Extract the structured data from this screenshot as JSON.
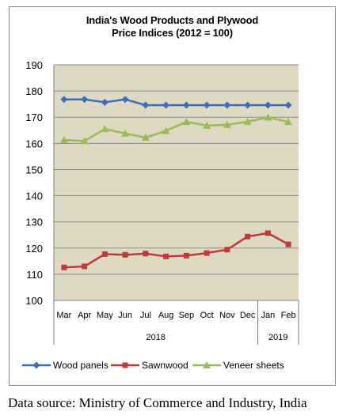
{
  "chart_data": {
    "type": "line",
    "title": [
      "India's Wood Products and Plywood",
      "Price Indices (2012 = 100)"
    ],
    "categories": [
      "Mar",
      "Apr",
      "May",
      "Jun",
      "Jul",
      "Aug",
      "Sep",
      "Oct",
      "Nov",
      "Dec",
      "Jan",
      "Feb"
    ],
    "year_groups": [
      {
        "label": "2018",
        "from": 0,
        "to": 9
      },
      {
        "label": "2019",
        "from": 10,
        "to": 11
      }
    ],
    "ylim": [
      100,
      190
    ],
    "yticks": [
      100,
      110,
      120,
      130,
      140,
      150,
      160,
      170,
      180,
      190
    ],
    "grid": "horizontal",
    "legend": "bottom",
    "series": [
      {
        "name": "Wood panels",
        "color": "#3e6fb5",
        "marker": "diamond",
        "values": [
          176.8,
          176.8,
          175.7,
          176.8,
          174.6,
          174.6,
          174.6,
          174.6,
          174.6,
          174.6,
          174.6,
          174.6
        ]
      },
      {
        "name": "Sawnwood",
        "color": "#c0393b",
        "marker": "square",
        "values": [
          112.6,
          113.0,
          117.7,
          117.4,
          117.9,
          116.8,
          117.1,
          118.1,
          119.4,
          124.4,
          125.7,
          121.4
        ]
      },
      {
        "name": "Veneer sheets",
        "color": "#9bbb59",
        "marker": "triangle",
        "values": [
          161.3,
          160.9,
          165.5,
          163.8,
          162.2,
          164.8,
          168.2,
          166.8,
          167.1,
          168.3,
          169.9,
          168.2
        ]
      }
    ],
    "colors": {
      "plot_background": "#ddd9c3",
      "gridline": "#8c8c8c"
    }
  },
  "source_note": "Data source: Ministry of Commerce and Industry, India"
}
